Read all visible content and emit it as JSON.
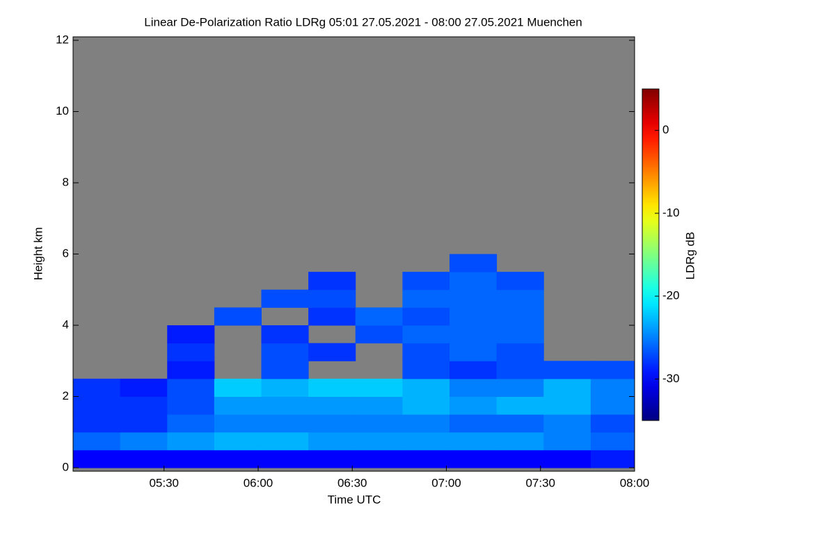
{
  "chart_data": {
    "type": "heatmap",
    "title": "Linear De-Polarization Ratio LDRg   05:01 27.05.2021 - 08:00 27.05.2021 Muenchen",
    "x_label": "Time UTC",
    "y_label": "Height km",
    "colorbar_label": "LDRg dB",
    "xlim": [
      301,
      480
    ],
    "xticks": [
      {
        "value": 330,
        "label": "05:30"
      },
      {
        "value": 360,
        "label": "06:00"
      },
      {
        "value": 390,
        "label": "06:30"
      },
      {
        "value": 420,
        "label": "07:00"
      },
      {
        "value": 450,
        "label": "07:30"
      },
      {
        "value": 480,
        "label": "08:00"
      }
    ],
    "ylim": [
      0,
      12
    ],
    "yticks": [
      0,
      2,
      4,
      6,
      8,
      10,
      12
    ],
    "clim": [
      -35,
      5
    ],
    "cticks": [
      -30,
      -20,
      -10,
      0
    ],
    "colormap": "jet",
    "background": "#808080",
    "x_edges": [
      301,
      316,
      331,
      346,
      361,
      376,
      391,
      406,
      421,
      436,
      451,
      466,
      480
    ],
    "y_edges": [
      0,
      0.5,
      1,
      1.5,
      2,
      2.5,
      3,
      3.5,
      4,
      4.5,
      5,
      5.5,
      6
    ],
    "values": [
      [
        -30,
        -30,
        -30,
        -30,
        -30,
        -30,
        -30,
        -30,
        -30,
        -30,
        -30,
        -29
      ],
      [
        -26,
        -25,
        -24,
        -23,
        -23,
        -24,
        -24,
        -24,
        -24,
        -24,
        -25,
        -26
      ],
      [
        -28,
        -28,
        -26,
        -25,
        -25,
        -25,
        -25,
        -25,
        -26,
        -26,
        -25,
        -27
      ],
      [
        -28,
        -28,
        -27,
        -24,
        -24,
        -24,
        -24,
        -23,
        -24,
        -23,
        -23,
        -25
      ],
      [
        -28,
        -29,
        -27,
        -22,
        -23,
        -22,
        -22,
        -23,
        -25,
        -25,
        -23,
        -25
      ],
      [
        null,
        null,
        -29,
        null,
        -27,
        null,
        null,
        -27,
        -28,
        -27,
        -27,
        -27
      ],
      [
        null,
        null,
        -28,
        null,
        -27,
        -28,
        null,
        -27,
        -26,
        -27,
        null,
        null
      ],
      [
        null,
        null,
        -29,
        null,
        -28,
        null,
        -27,
        -26,
        -26,
        -26,
        null,
        null
      ],
      [
        null,
        null,
        null,
        -27,
        null,
        -28,
        -26,
        -27,
        -26,
        -26,
        null,
        null
      ],
      [
        null,
        null,
        null,
        null,
        -27,
        -27,
        null,
        -26,
        -26,
        -26,
        null,
        null
      ],
      [
        null,
        null,
        null,
        null,
        null,
        -28,
        null,
        -27,
        -26,
        -27,
        null,
        null
      ],
      [
        null,
        null,
        null,
        null,
        null,
        null,
        null,
        null,
        -27,
        null,
        null,
        null
      ]
    ]
  }
}
